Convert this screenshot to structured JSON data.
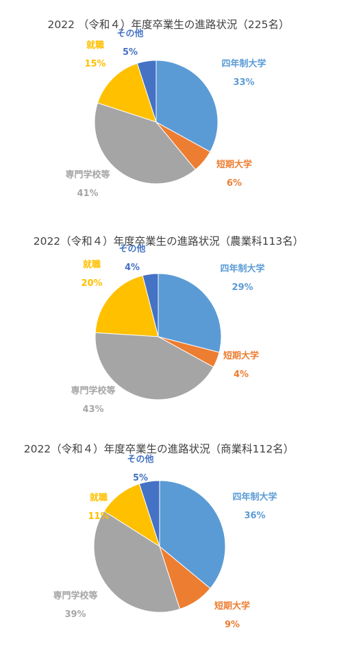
{
  "colors": {
    "四年制大学": "#5B9BD5",
    "短期大学": "#ED7D31",
    "専門学校等": "#A5A5A5",
    "就職": "#FFC000",
    "その他": "#4472C4"
  },
  "chart_data": [
    {
      "type": "pie",
      "title": "2022 （令和４）年度卒業生の進路状況（225名）",
      "categories": [
        "四年制大学",
        "短期大学",
        "専門学校等",
        "就職",
        "その他"
      ],
      "values": [
        33,
        6,
        41,
        15,
        5
      ],
      "labels": [
        "33%",
        "6%",
        "41%",
        "15%",
        "5%"
      ]
    },
    {
      "type": "pie",
      "title": "2022（令和４）年度卒業生の進路状況（農業科113名）",
      "categories": [
        "四年制大学",
        "短期大学",
        "専門学校等",
        "就職",
        "その他"
      ],
      "values": [
        29,
        4,
        43,
        20,
        4
      ],
      "labels": [
        "29%",
        "4%",
        "43%",
        "20%",
        "4%"
      ]
    },
    {
      "type": "pie",
      "title": "2022（令和４）年度卒業生の進路状況（商業科112名）",
      "categories": [
        "四年制大学",
        "短期大学",
        "専門学校等",
        "就職",
        "その他"
      ],
      "values": [
        36,
        9,
        39,
        11,
        5
      ],
      "labels": [
        "36%",
        "9%",
        "39%",
        "11%",
        "5%"
      ]
    }
  ]
}
